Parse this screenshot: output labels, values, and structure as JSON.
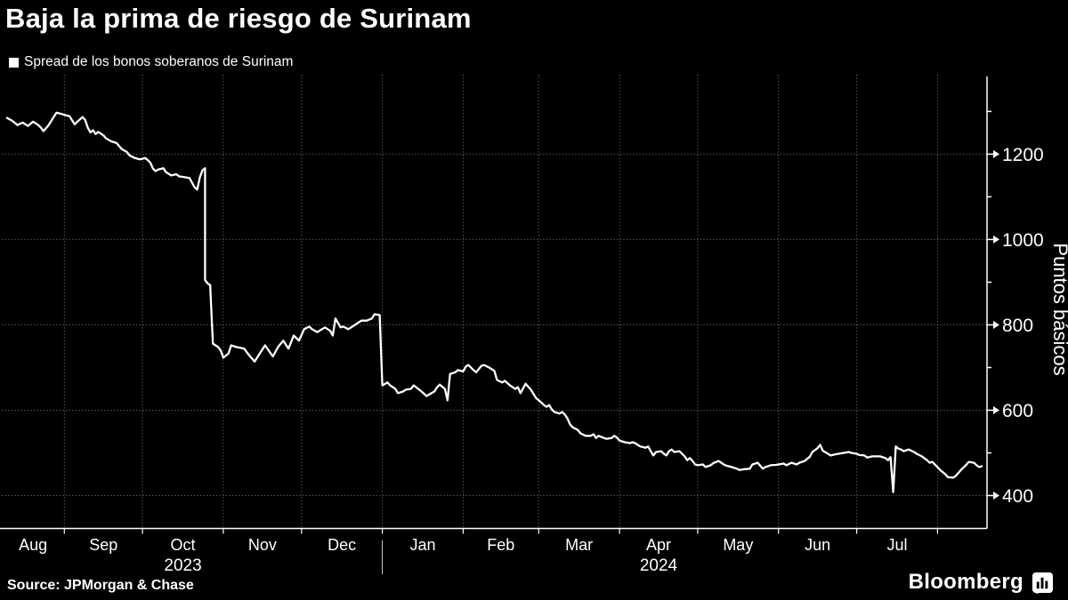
{
  "window": {
    "background": "#000000",
    "text_color": "#ffffff"
  },
  "header": {
    "title": "Baja la prima de riesgo de Surinam"
  },
  "legend": {
    "swatch_color": "#ffffff",
    "label": "Spread de los bonos soberanos de Surinam"
  },
  "footer": {
    "source": "Source: JPMorgan & Chase",
    "brand": "Bloomberg",
    "brand_icon": "bar-chart-icon"
  },
  "chart_data": {
    "type": "line",
    "title": "Baja la prima de riesgo de Surinam",
    "legend_position": "top-left",
    "ylabel": "Puntos básicos",
    "xlabel": "",
    "grid": "dotted",
    "background": "#000000",
    "line_color": "#ffffff",
    "axis_color": "#ffffff",
    "grid_color": "#999999",
    "ylim": [
      323,
      1382
    ],
    "y_ticks_labeled": [
      400,
      600,
      800,
      1000,
      1200
    ],
    "y_ticks_minor": [
      500,
      700,
      900,
      1100,
      1300
    ],
    "x_domain": [
      "2023-08-08",
      "2024-08-20"
    ],
    "x_month_labels": [
      "Aug",
      "Sep",
      "Oct",
      "Nov",
      "Dec",
      "Jan",
      "Feb",
      "Mar",
      "Apr",
      "May",
      "Jun",
      "Jul"
    ],
    "x_year_labels": [
      {
        "text": "2023",
        "under_month": "2023-10"
      },
      {
        "text": "2024",
        "under_month": "2024-04"
      }
    ],
    "series": [
      {
        "name": "Spread de los bonos soberanos de Surinam",
        "color": "#ffffff",
        "unit": "puntos básicos",
        "points": [
          [
            "2023-08-10",
            1285
          ],
          [
            "2023-08-12",
            1278
          ],
          [
            "2023-08-14",
            1268
          ],
          [
            "2023-08-16",
            1274
          ],
          [
            "2023-08-18",
            1266
          ],
          [
            "2023-08-20",
            1276
          ],
          [
            "2023-08-22",
            1268
          ],
          [
            "2023-08-23",
            1262
          ],
          [
            "2023-08-24",
            1254
          ],
          [
            "2023-08-26",
            1268
          ],
          [
            "2023-08-28",
            1288
          ],
          [
            "2023-08-29",
            1297
          ],
          [
            "2023-08-31",
            1294
          ],
          [
            "2023-09-01",
            1292
          ],
          [
            "2023-09-03",
            1289
          ],
          [
            "2023-09-04",
            1279
          ],
          [
            "2023-09-05",
            1270
          ],
          [
            "2023-09-06",
            1276
          ],
          [
            "2023-09-08",
            1287
          ],
          [
            "2023-09-09",
            1280
          ],
          [
            "2023-09-10",
            1262
          ],
          [
            "2023-09-11",
            1251
          ],
          [
            "2023-09-12",
            1256
          ],
          [
            "2023-09-13",
            1247
          ],
          [
            "2023-09-14",
            1252
          ],
          [
            "2023-09-16",
            1244
          ],
          [
            "2023-09-17",
            1237
          ],
          [
            "2023-09-19",
            1230
          ],
          [
            "2023-09-21",
            1226
          ],
          [
            "2023-09-22",
            1219
          ],
          [
            "2023-09-23",
            1212
          ],
          [
            "2023-09-25",
            1205
          ],
          [
            "2023-09-26",
            1197
          ],
          [
            "2023-09-28",
            1191
          ],
          [
            "2023-09-30",
            1188
          ],
          [
            "2023-10-02",
            1191
          ],
          [
            "2023-10-03",
            1186
          ],
          [
            "2023-10-04",
            1180
          ],
          [
            "2023-10-05",
            1166
          ],
          [
            "2023-10-06",
            1160
          ],
          [
            "2023-10-07",
            1164
          ],
          [
            "2023-10-09",
            1167
          ],
          [
            "2023-10-10",
            1158
          ],
          [
            "2023-10-12",
            1150
          ],
          [
            "2023-10-14",
            1153
          ],
          [
            "2023-10-15",
            1148
          ],
          [
            "2023-10-17",
            1146
          ],
          [
            "2023-10-19",
            1144
          ],
          [
            "2023-10-20",
            1133
          ],
          [
            "2023-10-21",
            1122
          ],
          [
            "2023-10-22",
            1117
          ],
          [
            "2023-10-23",
            1146
          ],
          [
            "2023-10-24",
            1162
          ],
          [
            "2023-10-25",
            1167
          ],
          [
            "2023-10-25",
            905
          ],
          [
            "2023-10-26",
            897
          ],
          [
            "2023-10-27",
            893
          ],
          [
            "2023-10-27",
            886
          ],
          [
            "2023-10-28",
            756
          ],
          [
            "2023-10-30",
            748
          ],
          [
            "2023-10-31",
            740
          ],
          [
            "2023-11-01",
            723
          ],
          [
            "2023-11-03",
            733
          ],
          [
            "2023-11-04",
            752
          ],
          [
            "2023-11-06",
            748
          ],
          [
            "2023-11-09",
            744
          ],
          [
            "2023-11-11",
            728
          ],
          [
            "2023-11-13",
            714
          ],
          [
            "2023-11-15",
            733
          ],
          [
            "2023-11-17",
            752
          ],
          [
            "2023-11-20",
            726
          ],
          [
            "2023-11-22",
            748
          ],
          [
            "2023-11-24",
            763
          ],
          [
            "2023-11-26",
            744
          ],
          [
            "2023-11-28",
            775
          ],
          [
            "2023-11-30",
            763
          ],
          [
            "2023-12-02",
            790
          ],
          [
            "2023-12-04",
            796
          ],
          [
            "2023-12-05",
            790
          ],
          [
            "2023-12-07",
            783
          ],
          [
            "2023-12-10",
            794
          ],
          [
            "2023-12-12",
            786
          ],
          [
            "2023-12-13",
            775
          ],
          [
            "2023-12-14",
            815
          ],
          [
            "2023-12-16",
            794
          ],
          [
            "2023-12-17",
            796
          ],
          [
            "2023-12-19",
            790
          ],
          [
            "2023-12-21",
            798
          ],
          [
            "2023-12-23",
            806
          ],
          [
            "2023-12-24",
            810
          ],
          [
            "2023-12-26",
            810
          ],
          [
            "2023-12-28",
            815
          ],
          [
            "2023-12-29",
            825
          ],
          [
            "2023-12-31",
            823
          ],
          [
            "2024-01-01",
            658
          ],
          [
            "2024-01-03",
            665
          ],
          [
            "2024-01-04",
            658
          ],
          [
            "2024-01-06",
            650
          ],
          [
            "2024-01-07",
            640
          ],
          [
            "2024-01-09",
            644
          ],
          [
            "2024-01-10",
            648
          ],
          [
            "2024-01-12",
            650
          ],
          [
            "2024-01-13",
            658
          ],
          [
            "2024-01-14",
            654
          ],
          [
            "2024-01-16",
            644
          ],
          [
            "2024-01-18",
            633
          ],
          [
            "2024-01-19",
            637
          ],
          [
            "2024-01-21",
            644
          ],
          [
            "2024-01-22",
            654
          ],
          [
            "2024-01-23",
            660
          ],
          [
            "2024-01-25",
            650
          ],
          [
            "2024-01-26",
            623
          ],
          [
            "2024-01-27",
            685
          ],
          [
            "2024-01-29",
            689
          ],
          [
            "2024-01-30",
            694
          ],
          [
            "2024-02-01",
            691
          ],
          [
            "2024-02-02",
            702
          ],
          [
            "2024-02-03",
            706
          ],
          [
            "2024-02-05",
            694
          ],
          [
            "2024-02-06",
            689
          ],
          [
            "2024-02-08",
            704
          ],
          [
            "2024-02-09",
            706
          ],
          [
            "2024-02-11",
            700
          ],
          [
            "2024-02-13",
            692
          ],
          [
            "2024-02-14",
            671
          ],
          [
            "2024-02-16",
            665
          ],
          [
            "2024-02-17",
            669
          ],
          [
            "2024-02-19",
            658
          ],
          [
            "2024-02-21",
            650
          ],
          [
            "2024-02-22",
            654
          ],
          [
            "2024-02-23",
            640
          ],
          [
            "2024-02-25",
            662
          ],
          [
            "2024-02-26",
            655
          ],
          [
            "2024-02-27",
            648
          ],
          [
            "2024-02-29",
            628
          ],
          [
            "2024-03-02",
            618
          ],
          [
            "2024-03-03",
            612
          ],
          [
            "2024-03-04",
            608
          ],
          [
            "2024-03-05",
            612
          ],
          [
            "2024-03-06",
            602
          ],
          [
            "2024-03-07",
            596
          ],
          [
            "2024-03-09",
            592
          ],
          [
            "2024-03-10",
            596
          ],
          [
            "2024-03-11",
            590
          ],
          [
            "2024-03-12",
            581
          ],
          [
            "2024-03-13",
            567
          ],
          [
            "2024-03-14",
            560
          ],
          [
            "2024-03-16",
            554
          ],
          [
            "2024-03-17",
            546
          ],
          [
            "2024-03-19",
            540
          ],
          [
            "2024-03-21",
            540
          ],
          [
            "2024-03-22",
            544
          ],
          [
            "2024-03-23",
            535
          ],
          [
            "2024-03-24",
            540
          ],
          [
            "2024-03-26",
            535
          ],
          [
            "2024-03-27",
            533
          ],
          [
            "2024-03-29",
            535
          ],
          [
            "2024-03-30",
            540
          ],
          [
            "2024-03-31",
            536
          ],
          [
            "2024-04-01",
            529
          ],
          [
            "2024-04-03",
            525
          ],
          [
            "2024-04-05",
            523
          ],
          [
            "2024-04-06",
            525
          ],
          [
            "2024-04-07",
            523
          ],
          [
            "2024-04-09",
            515
          ],
          [
            "2024-04-11",
            512
          ],
          [
            "2024-04-12",
            515
          ],
          [
            "2024-04-13",
            504
          ],
          [
            "2024-04-14",
            494
          ],
          [
            "2024-04-15",
            502
          ],
          [
            "2024-04-17",
            504
          ],
          [
            "2024-04-18",
            498
          ],
          [
            "2024-04-19",
            494
          ],
          [
            "2024-04-20",
            504
          ],
          [
            "2024-04-21",
            508
          ],
          [
            "2024-04-22",
            502
          ],
          [
            "2024-04-24",
            504
          ],
          [
            "2024-04-26",
            492
          ],
          [
            "2024-04-27",
            483
          ],
          [
            "2024-04-28",
            488
          ],
          [
            "2024-04-29",
            481
          ],
          [
            "2024-04-30",
            473
          ],
          [
            "2024-05-01",
            471
          ],
          [
            "2024-05-03",
            473
          ],
          [
            "2024-05-04",
            467
          ],
          [
            "2024-05-06",
            471
          ],
          [
            "2024-05-07",
            476
          ],
          [
            "2024-05-09",
            481
          ],
          [
            "2024-05-11",
            473
          ],
          [
            "2024-05-12",
            470
          ],
          [
            "2024-05-14",
            467
          ],
          [
            "2024-05-16",
            463
          ],
          [
            "2024-05-17",
            460
          ],
          [
            "2024-05-19",
            462
          ],
          [
            "2024-05-21",
            463
          ],
          [
            "2024-05-22",
            473
          ],
          [
            "2024-05-24",
            477
          ],
          [
            "2024-05-26",
            463
          ],
          [
            "2024-05-27",
            467
          ],
          [
            "2024-05-29",
            471
          ],
          [
            "2024-05-31",
            472
          ],
          [
            "2024-06-01",
            473
          ],
          [
            "2024-06-03",
            475
          ],
          [
            "2024-06-04",
            471
          ],
          [
            "2024-06-06",
            477
          ],
          [
            "2024-06-08",
            473
          ],
          [
            "2024-06-09",
            477
          ],
          [
            "2024-06-11",
            481
          ],
          [
            "2024-06-13",
            491
          ],
          [
            "2024-06-14",
            502
          ],
          [
            "2024-06-16",
            511
          ],
          [
            "2024-06-17",
            519
          ],
          [
            "2024-06-18",
            505
          ],
          [
            "2024-06-20",
            498
          ],
          [
            "2024-06-21",
            494
          ],
          [
            "2024-06-23",
            497
          ],
          [
            "2024-06-24",
            498
          ],
          [
            "2024-06-26",
            500
          ],
          [
            "2024-06-28",
            502
          ],
          [
            "2024-06-29",
            500
          ],
          [
            "2024-07-01",
            498
          ],
          [
            "2024-07-02",
            495
          ],
          [
            "2024-07-04",
            494
          ],
          [
            "2024-07-05",
            489
          ],
          [
            "2024-07-07",
            492
          ],
          [
            "2024-07-09",
            492
          ],
          [
            "2024-07-10",
            492
          ],
          [
            "2024-07-12",
            488
          ],
          [
            "2024-07-13",
            483
          ],
          [
            "2024-07-14",
            490
          ],
          [
            "2024-07-15",
            408
          ],
          [
            "2024-07-16",
            515
          ],
          [
            "2024-07-17",
            510
          ],
          [
            "2024-07-18",
            508
          ],
          [
            "2024-07-19",
            504
          ],
          [
            "2024-07-21",
            508
          ],
          [
            "2024-07-23",
            502
          ],
          [
            "2024-07-24",
            498
          ],
          [
            "2024-07-26",
            492
          ],
          [
            "2024-07-28",
            483
          ],
          [
            "2024-07-29",
            477
          ],
          [
            "2024-07-30",
            479
          ],
          [
            "2024-07-31",
            473
          ],
          [
            "2024-08-02",
            460
          ],
          [
            "2024-08-04",
            450
          ],
          [
            "2024-08-05",
            443
          ],
          [
            "2024-08-07",
            442
          ],
          [
            "2024-08-08",
            446
          ],
          [
            "2024-08-10",
            460
          ],
          [
            "2024-08-12",
            472
          ],
          [
            "2024-08-13",
            479
          ],
          [
            "2024-08-15",
            477
          ],
          [
            "2024-08-16",
            471
          ],
          [
            "2024-08-17",
            467
          ],
          [
            "2024-08-18",
            469
          ]
        ]
      }
    ]
  }
}
